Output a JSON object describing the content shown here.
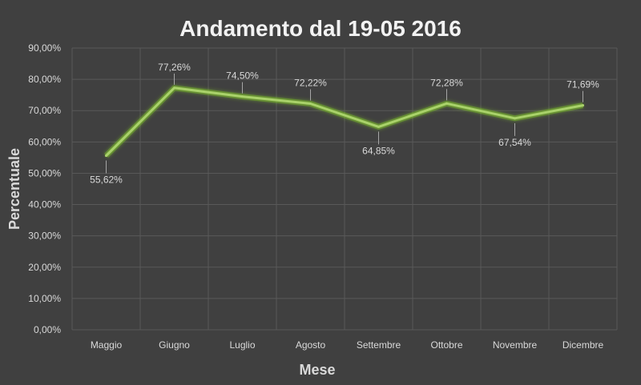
{
  "chart_data": {
    "type": "line",
    "title": "Andamento dal 19-05 2016",
    "xlabel": "Mese",
    "ylabel": "Percentuale",
    "categories": [
      "Maggio",
      "Giugno",
      "Luglio",
      "Agosto",
      "Settembre",
      "Ottobre",
      "Novembre",
      "Dicembre"
    ],
    "series": [
      {
        "values": [
          55.62,
          77.26,
          74.5,
          72.22,
          64.85,
          72.28,
          67.54,
          71.69
        ],
        "labels": [
          "55,62%",
          "77,26%",
          "74,50%",
          "72,22%",
          "64,85%",
          "72,28%",
          "67,54%",
          "71,69%"
        ]
      }
    ],
    "ylim": [
      0,
      90
    ],
    "yticks": [
      "0,00%",
      "10,00%",
      "20,00%",
      "30,00%",
      "40,00%",
      "50,00%",
      "60,00%",
      "70,00%",
      "80,00%",
      "90,00%"
    ],
    "grid": true,
    "legend": "none",
    "colors": {
      "background": "#404040",
      "line": "#a9d26a",
      "glow": "#7fbf2a",
      "text": "#d9d9d9"
    }
  }
}
